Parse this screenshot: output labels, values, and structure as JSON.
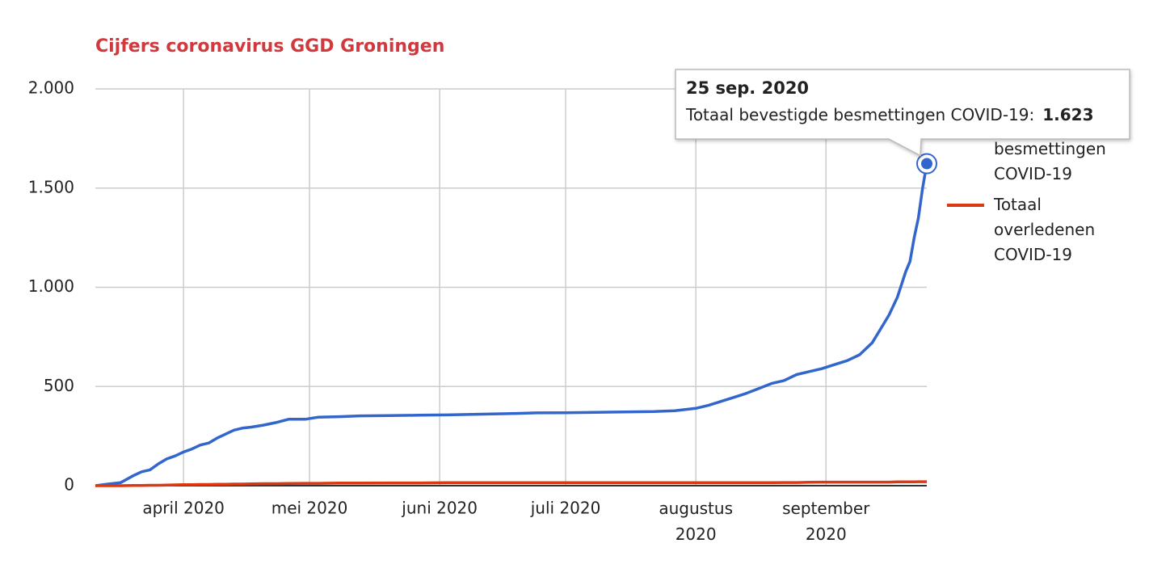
{
  "chart_data": {
    "type": "line",
    "title": "Cijfers coronavirus GGD Groningen",
    "x": [
      "2020-03-11",
      "2020-03-14",
      "2020-03-17",
      "2020-03-20",
      "2020-03-22",
      "2020-03-24",
      "2020-03-26",
      "2020-03-28",
      "2020-03-30",
      "2020-04-01",
      "2020-04-03",
      "2020-04-05",
      "2020-04-07",
      "2020-04-09",
      "2020-04-11",
      "2020-04-13",
      "2020-04-15",
      "2020-04-17",
      "2020-04-20",
      "2020-04-23",
      "2020-04-26",
      "2020-04-30",
      "2020-05-03",
      "2020-05-08",
      "2020-05-13",
      "2020-05-20",
      "2020-05-27",
      "2020-06-03",
      "2020-06-10",
      "2020-06-17",
      "2020-06-24",
      "2020-07-01",
      "2020-07-08",
      "2020-07-15",
      "2020-07-22",
      "2020-07-27",
      "2020-08-01",
      "2020-08-04",
      "2020-08-07",
      "2020-08-10",
      "2020-08-13",
      "2020-08-16",
      "2020-08-19",
      "2020-08-22",
      "2020-08-25",
      "2020-08-28",
      "2020-08-31",
      "2020-09-03",
      "2020-09-06",
      "2020-09-09",
      "2020-09-12",
      "2020-09-14",
      "2020-09-16",
      "2020-09-18",
      "2020-09-20",
      "2020-09-21",
      "2020-09-22",
      "2020-09-23",
      "2020-09-24",
      "2020-09-25"
    ],
    "series": [
      {
        "name": "Totaal bevestigde besmettingen COVID-19",
        "color": "#3366cc",
        "values": [
          0,
          8,
          15,
          50,
          70,
          80,
          110,
          135,
          150,
          170,
          185,
          205,
          215,
          240,
          260,
          280,
          290,
          295,
          305,
          318,
          335,
          335,
          345,
          348,
          352,
          353,
          355,
          357,
          360,
          363,
          367,
          368,
          370,
          372,
          374,
          378,
          390,
          405,
          425,
          445,
          465,
          490,
          515,
          530,
          560,
          575,
          590,
          610,
          630,
          660,
          720,
          790,
          860,
          950,
          1080,
          1130,
          1250,
          1350,
          1500,
          1623
        ]
      },
      {
        "name": "Totaal overledenen COVID-19",
        "color": "#dc3912",
        "values": [
          0,
          0,
          0,
          1,
          1,
          2,
          2,
          3,
          4,
          5,
          5,
          6,
          6,
          7,
          7,
          8,
          8,
          9,
          10,
          10,
          11,
          12,
          12,
          13,
          13,
          14,
          14,
          15,
          15,
          15,
          15,
          15,
          15,
          15,
          15,
          15,
          15,
          15,
          15,
          15,
          15,
          15,
          15,
          16,
          16,
          17,
          18,
          18,
          18,
          18,
          18,
          18,
          18,
          19,
          19,
          19,
          19,
          20,
          20,
          20
        ]
      }
    ],
    "xlim": [
      "2020-03-11",
      "2020-09-25"
    ],
    "xticks": [
      {
        "value": "2020-04-01",
        "label": "april 2020"
      },
      {
        "value": "2020-05-01",
        "label": "mei 2020"
      },
      {
        "value": "2020-06-01",
        "label": "juni 2020"
      },
      {
        "value": "2020-07-01",
        "label": "juli 2020"
      },
      {
        "value": "2020-08-01",
        "label": "augustus 2020"
      },
      {
        "value": "2020-09-01",
        "label": "september 2020"
      }
    ],
    "ylim": [
      0,
      2000
    ],
    "yticks": [
      0,
      500,
      {
        "value": 1000,
        "label": "1.000"
      },
      {
        "value": 1500,
        "label": "1.500"
      },
      {
        "value": 2000,
        "label": "2.000"
      }
    ],
    "grid": true,
    "legend": "right",
    "tooltip": {
      "date": "25 sep. 2020",
      "text": "Totaal bevestigde besmettingen COVID-19:",
      "value": "1.623"
    }
  }
}
